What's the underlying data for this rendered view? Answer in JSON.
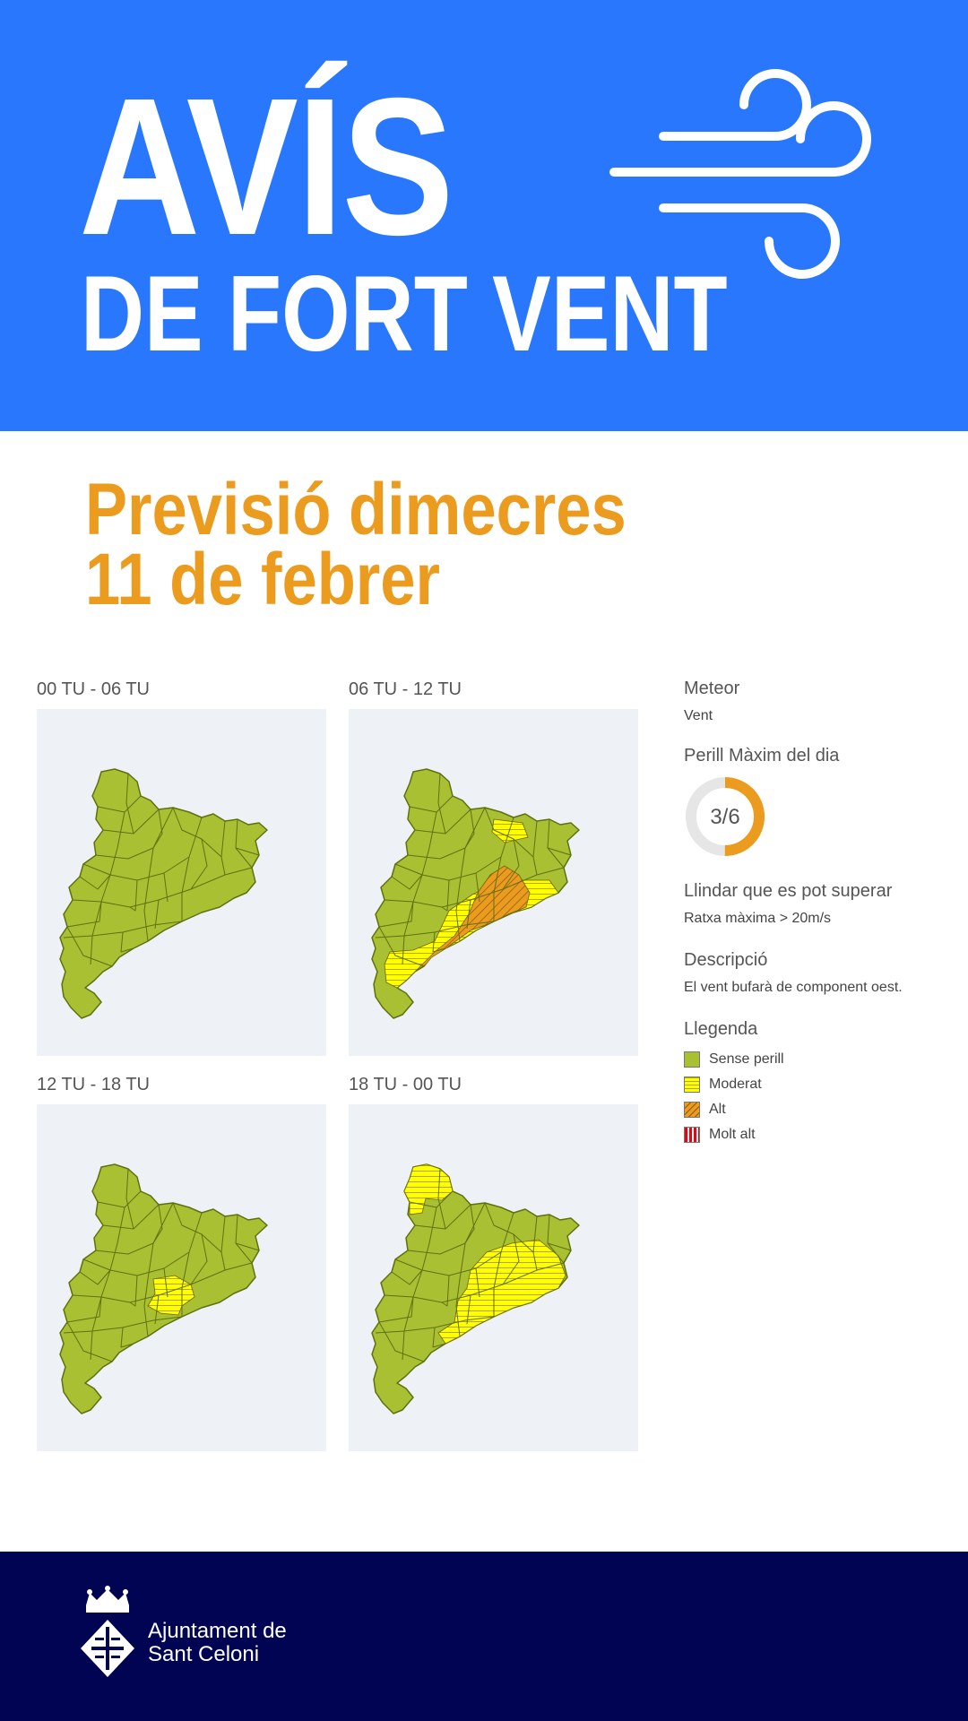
{
  "header": {
    "title": "AVÍS",
    "subtitle": "DE FORT VENT",
    "icon": "wind-icon",
    "bg_color": "#2877fc"
  },
  "forecast": {
    "line1": "Previsió dimecres",
    "line2": "11 de febrer",
    "color": "#eb9b1d"
  },
  "panels": [
    {
      "label": "00 TU - 06 TU",
      "overlay": "none"
    },
    {
      "label": "06 TU - 12 TU",
      "overlay": "moderate-alt"
    },
    {
      "label": "12 TU - 18 TU",
      "overlay": "small-moderate"
    },
    {
      "label": "18 TU - 00 TU",
      "overlay": "moderate-wide"
    }
  ],
  "sidebar": {
    "meteor_title": "Meteor",
    "meteor_value": "Vent",
    "danger_title": "Perill Màxim del dia",
    "danger_value": "3/6",
    "danger_fraction": 0.5,
    "threshold_title": "Llindar que es pot superar",
    "threshold_value": "Ratxa màxima > 20m/s",
    "description_title": "Descripció",
    "description_value": "El vent bufarà de component oest.",
    "legend_title": "Llegenda",
    "legend": [
      {
        "label": "Sense perill",
        "color": "#a9c032"
      },
      {
        "label": "Moderat",
        "color": "#ffff00"
      },
      {
        "label": "Alt",
        "color": "#eb9b1d"
      },
      {
        "label": "Molt alt",
        "color": "#e30613"
      }
    ]
  },
  "footer": {
    "line1": "Ajuntament de",
    "line2": "Sant Celoni",
    "bg_color": "#010353"
  }
}
